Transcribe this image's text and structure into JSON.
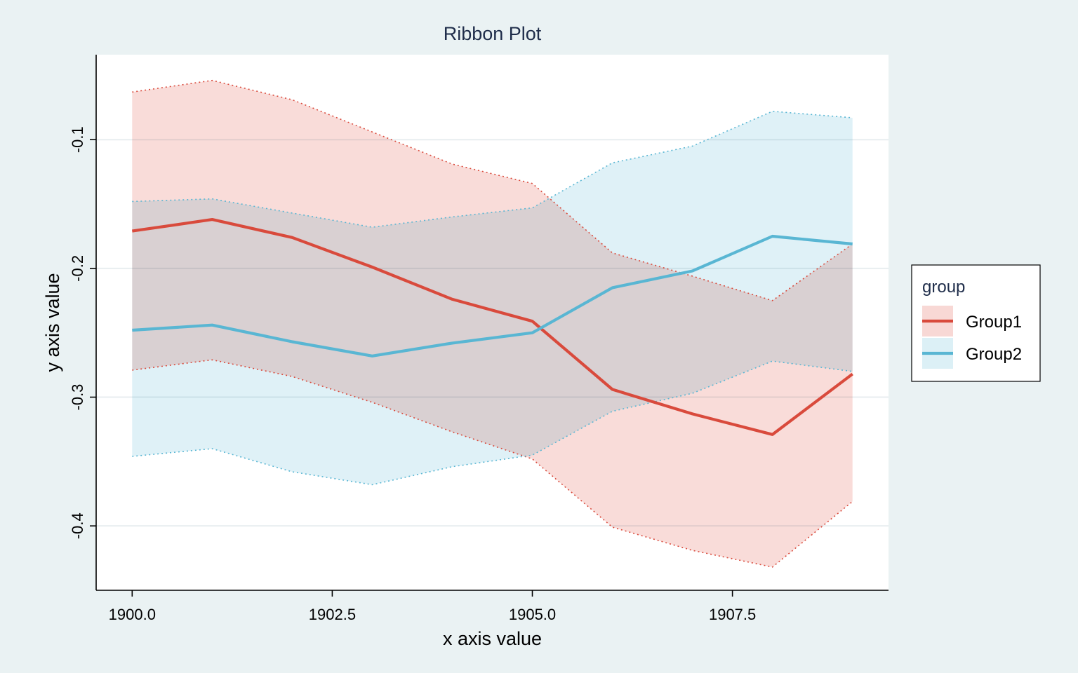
{
  "chart_data": {
    "type": "area",
    "title": "Ribbon Plot",
    "xlabel": "x axis value",
    "ylabel": "y axis value",
    "x": [
      1900,
      1901,
      1902,
      1903,
      1904,
      1905,
      1906,
      1907,
      1908,
      1909
    ],
    "xlim": [
      1899.55,
      1909.45
    ],
    "ylim": [
      -0.45,
      -0.034
    ],
    "xticks": [
      1900.0,
      1902.5,
      1905.0,
      1907.5
    ],
    "xtick_labels": [
      "1900.0",
      "1902.5",
      "1905.0",
      "1907.5"
    ],
    "yticks": [
      -0.1,
      -0.2,
      -0.3,
      -0.4
    ],
    "ytick_labels": [
      "-0.1",
      "-0.2",
      "-0.3",
      "-0.4"
    ],
    "grid": "horizontal",
    "legend": {
      "title": "group",
      "position": "right"
    },
    "series": [
      {
        "name": "Group1",
        "color": "#d94a3c",
        "fill": "#f8d8d5",
        "values": [
          -0.171,
          -0.162,
          -0.176,
          -0.199,
          -0.224,
          -0.241,
          -0.294,
          -0.313,
          -0.329,
          -0.282
        ],
        "upper": [
          -0.063,
          -0.054,
          -0.069,
          -0.094,
          -0.119,
          -0.134,
          -0.188,
          -0.206,
          -0.225,
          -0.181
        ],
        "lower": [
          -0.279,
          -0.271,
          -0.284,
          -0.304,
          -0.327,
          -0.348,
          -0.401,
          -0.419,
          -0.432,
          -0.381
        ]
      },
      {
        "name": "Group2",
        "color": "#59b6d3",
        "fill": "#dcf0f6",
        "values": [
          -0.248,
          -0.244,
          -0.257,
          -0.268,
          -0.258,
          -0.25,
          -0.215,
          -0.202,
          -0.175,
          -0.181
        ],
        "upper": [
          -0.148,
          -0.146,
          -0.157,
          -0.168,
          -0.16,
          -0.153,
          -0.118,
          -0.105,
          -0.078,
          -0.083
        ],
        "lower": [
          -0.346,
          -0.34,
          -0.358,
          -0.368,
          -0.354,
          -0.345,
          -0.311,
          -0.297,
          -0.272,
          -0.28
        ]
      }
    ]
  }
}
